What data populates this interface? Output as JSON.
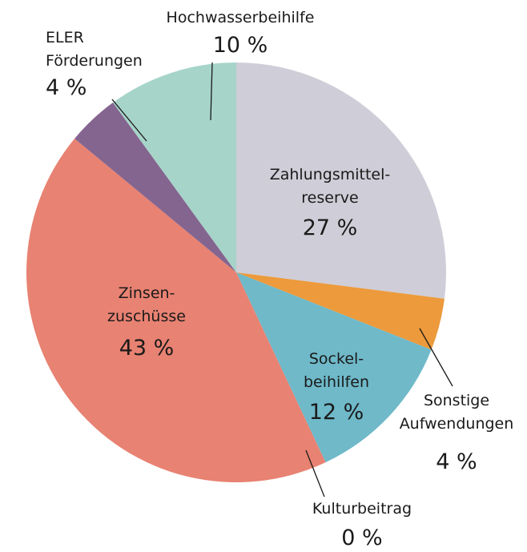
{
  "chart_data": {
    "type": "pie",
    "categories": [
      "Zahlungsmittel-\nreserve",
      "Sonstige\nAufwendungen",
      "Sockel-\nbeihilfen",
      "Kulturbeitrag",
      "Zinsen-\nzuschüsse",
      "ELER\nFörderungen",
      "Hochwasserbeihilfe"
    ],
    "values": [
      27,
      4,
      12,
      0,
      43,
      4,
      10
    ],
    "value_labels": [
      "27 %",
      "4 %",
      "12 %",
      "0 %",
      "43 %",
      "4 %",
      "10 %"
    ],
    "colors": [
      "#cfcdd7",
      "#ec9a3c",
      "#6fb9c9",
      "#e6c35c",
      "#e88272",
      "#84658f",
      "#a6d4c9"
    ]
  }
}
